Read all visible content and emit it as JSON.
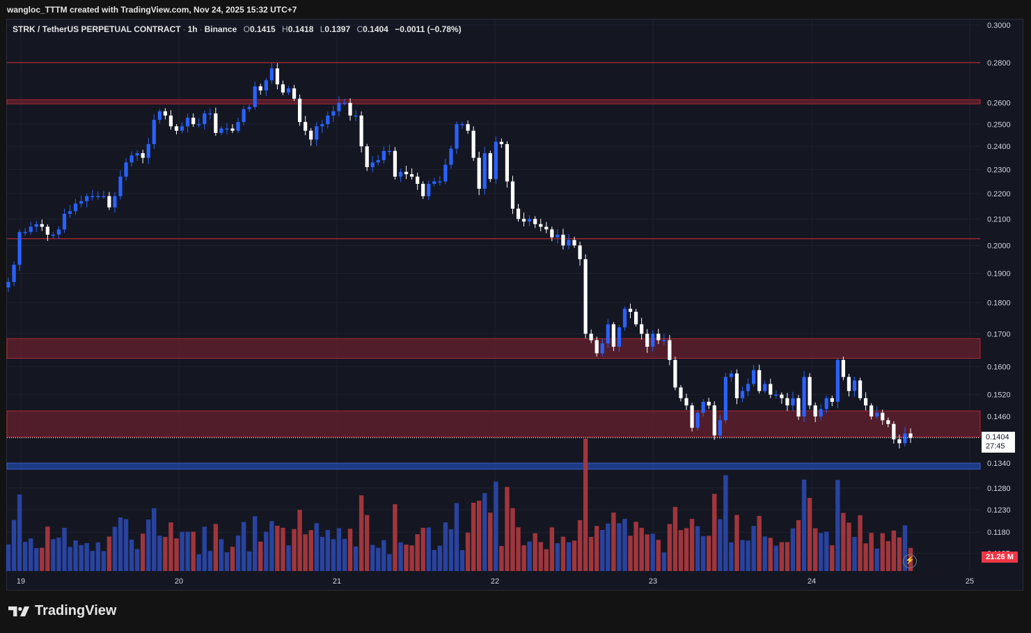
{
  "caption": "wangloc_TTTM created with TradingView.com, Nov 24, 2025 15:32 UTC+7",
  "legend": {
    "symbol": "STRK / TetherUS PERPETUAL CONTRACT",
    "interval": "1h",
    "exchange": "Binance",
    "o_label": "O",
    "o_value": "0.1415",
    "h_label": "H",
    "h_value": "0.1418",
    "l_label": "L",
    "l_value": "0.1397",
    "c_label": "C",
    "c_value": "0.1404",
    "change": "−0.0011 (−0.78%)"
  },
  "price_tag": {
    "price": "0.1404",
    "countdown": "27:45"
  },
  "volume_tag": "21.26 M",
  "brand": "TradingView",
  "colors": {
    "up": "#2962ff",
    "down": "#ffffff",
    "vol_up": "#2a46a6",
    "vol_down": "#a8383e",
    "zone_red": "#5c1f2c",
    "line_red": "#b22833",
    "zone_blue": "#1e3f8f",
    "background": "#141722"
  },
  "chart_data": {
    "type": "candlestick",
    "symbol": "STRK / TetherUS PERPETUAL CONTRACT",
    "interval": "1h",
    "scale": "log",
    "y_ticks": [
      0.3,
      0.28,
      0.26,
      0.25,
      0.24,
      0.23,
      0.22,
      0.21,
      0.2,
      0.19,
      0.18,
      0.17,
      0.16,
      0.152,
      0.146,
      0.134,
      0.128,
      0.123,
      0.118,
      0.1135
    ],
    "x_ticks": [
      "19",
      "20",
      "21",
      "22",
      "23",
      "24",
      "25"
    ],
    "horizontal_lines": [
      0.28,
      0.2025
    ],
    "resistance_zones": [
      [
        0.2595,
        0.2615
      ],
      [
        0.1625,
        0.1685
      ],
      [
        0.1406,
        0.1475
      ]
    ],
    "support_zones": [
      [
        0.1325,
        0.134
      ]
    ],
    "last_price": 0.1404,
    "closes": [
      0.187,
      0.193,
      0.205,
      0.205,
      0.207,
      0.208,
      0.207,
      0.204,
      0.204,
      0.206,
      0.212,
      0.213,
      0.216,
      0.217,
      0.219,
      0.219,
      0.219,
      0.219,
      0.2145,
      0.219,
      0.227,
      0.233,
      0.236,
      0.237,
      0.235,
      0.241,
      0.252,
      0.256,
      0.254,
      0.249,
      0.247,
      0.249,
      0.253,
      0.25,
      0.25,
      0.255,
      0.255,
      0.246,
      0.248,
      0.248,
      0.247,
      0.251,
      0.257,
      0.258,
      0.268,
      0.266,
      0.271,
      0.277,
      0.269,
      0.265,
      0.267,
      0.262,
      0.251,
      0.247,
      0.243,
      0.249,
      0.25,
      0.254,
      0.256,
      0.26,
      0.26,
      0.254,
      0.254,
      0.24,
      0.231,
      0.233,
      0.234,
      0.238,
      0.238,
      0.227,
      0.229,
      0.228,
      0.227,
      0.224,
      0.219,
      0.224,
      0.225,
      0.225,
      0.232,
      0.239,
      0.25,
      0.25,
      0.247,
      0.235,
      0.222,
      0.237,
      0.226,
      0.242,
      0.241,
      0.225,
      0.214,
      0.21,
      0.209,
      0.21,
      0.208,
      0.207,
      0.206,
      0.203,
      0.204,
      0.2,
      0.202,
      0.2,
      0.195,
      0.17,
      0.168,
      0.164,
      0.167,
      0.173,
      0.166,
      0.172,
      0.178,
      0.177,
      0.173,
      0.17,
      0.166,
      0.17,
      0.168,
      0.168,
      0.162,
      0.154,
      0.151,
      0.149,
      0.143,
      0.147,
      0.15,
      0.149,
      0.141,
      0.145,
      0.157,
      0.158,
      0.151,
      0.153,
      0.155,
      0.159,
      0.153,
      0.155,
      0.152,
      0.152,
      0.151,
      0.149,
      0.151,
      0.146,
      0.157,
      0.149,
      0.146,
      0.148,
      0.151,
      0.15,
      0.162,
      0.157,
      0.153,
      0.156,
      0.151,
      0.149,
      0.146,
      0.147,
      0.145,
      0.144,
      0.14,
      0.139,
      0.1415,
      0.1404
    ],
    "volume_last": "21.26 M"
  }
}
